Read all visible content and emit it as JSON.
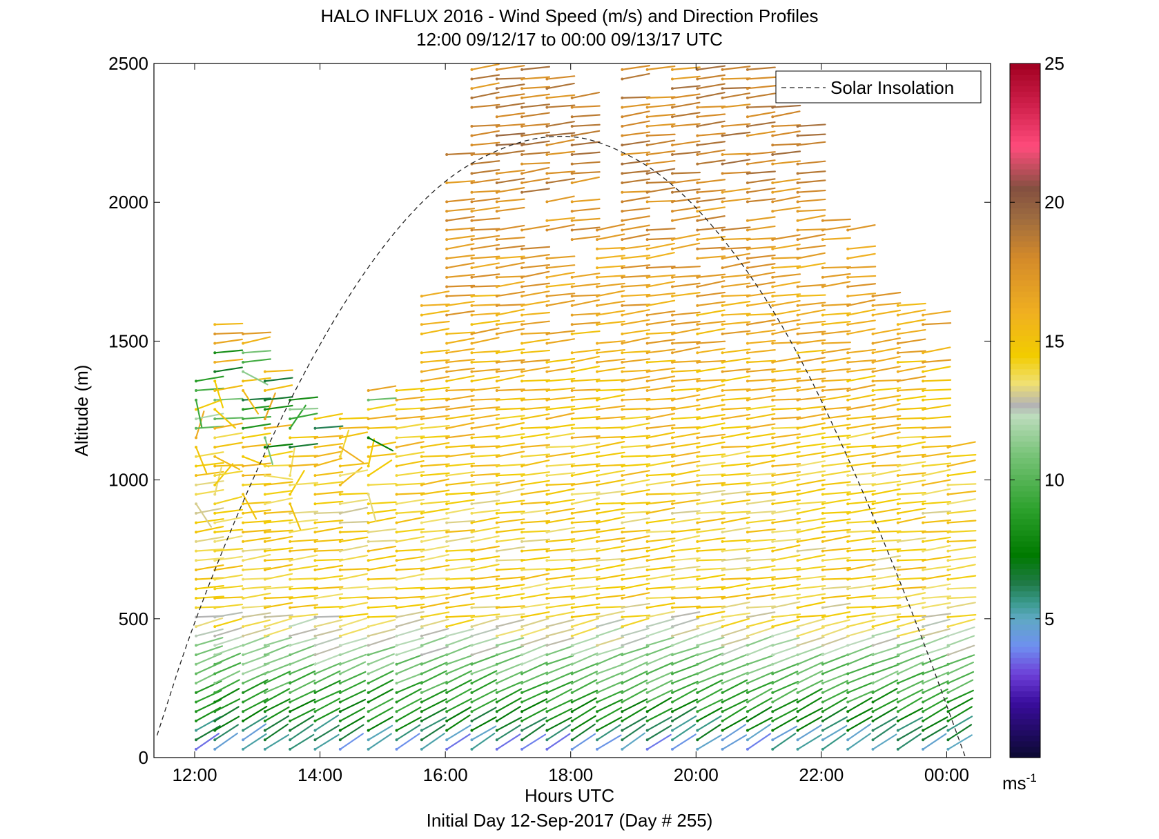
{
  "chart_data": {
    "type": "wind-barb-profile",
    "title": "HALO INFLUX 2016 - Wind Speed (m/s) and Direction Profiles",
    "subtitle": "12:00 09/12/17 to 00:00 09/13/17  UTC",
    "xlabel": "Hours UTC",
    "ylabel": "Altitude (m)",
    "footer": "Initial Day 12-Sep-2017 (Day # 255)",
    "xlim": [
      11.35,
      24.7
    ],
    "ylim": [
      0,
      2500
    ],
    "x_ticks": [
      12,
      14,
      16,
      18,
      20,
      22,
      24
    ],
    "x_tick_labels": [
      "12:00",
      "14:00",
      "16:00",
      "18:00",
      "20:00",
      "22:00",
      "00:00"
    ],
    "y_ticks": [
      0,
      500,
      1000,
      1500,
      2000,
      2500
    ],
    "y_tick_labels": [
      "0",
      "500",
      "1000",
      "1500",
      "2000",
      "2500"
    ],
    "legend": {
      "position": "top-right",
      "entries": [
        "Solar Insolation"
      ]
    },
    "solar_insolation": {
      "line_style": "dashed",
      "x": [
        11.4,
        12.0,
        13.0,
        14.0,
        15.0,
        16.0,
        17.0,
        17.8,
        18.5,
        19.5,
        20.5,
        21.5,
        22.5,
        23.5,
        24.3
      ],
      "y": [
        80,
        500,
        1050,
        1500,
        1850,
        2090,
        2210,
        2245,
        2220,
        2100,
        1860,
        1520,
        1050,
        500,
        0
      ]
    },
    "profiles": {
      "times": [
        12.0,
        12.3,
        12.75,
        13.1,
        13.5,
        13.9,
        14.3,
        14.75,
        15.2,
        15.6,
        16.0,
        16.4,
        16.8,
        17.2,
        17.6,
        18.0,
        18.4,
        18.8,
        19.2,
        19.6,
        20.0,
        20.4,
        20.8,
        21.2,
        21.6,
        22.0,
        22.4,
        22.8,
        23.2,
        23.6,
        24.0
      ],
      "tops_m": [
        1380,
        1580,
        1540,
        1420,
        1300,
        1250,
        1220,
        1350,
        1340,
        1680,
        2200,
        2500,
        2500,
        2500,
        2500,
        2400,
        1900,
        2500,
        2500,
        2500,
        2500,
        2500,
        2500,
        2350,
        2300,
        2050,
        1900,
        1720,
        1700,
        1620,
        1120
      ],
      "min_altitude_m": 30,
      "vertical_spacing_m": 34,
      "speed_profile": [
        {
          "altitude": 0,
          "speed": 4
        },
        {
          "altitude": 150,
          "speed": 8
        },
        {
          "altitude": 300,
          "speed": 10.5
        },
        {
          "altitude": 420,
          "speed": 12.5
        },
        {
          "altitude": 560,
          "speed": 14.5
        },
        {
          "altitude": 900,
          "speed": 14.2
        },
        {
          "altitude": 1300,
          "speed": 15.5
        },
        {
          "altitude": 1800,
          "speed": 17
        },
        {
          "altitude": 2200,
          "speed": 18.5
        },
        {
          "altitude": 2500,
          "speed": 18
        }
      ]
    },
    "colorbar": {
      "range": [
        0,
        25
      ],
      "ticks": [
        5,
        10,
        15,
        20,
        25
      ],
      "tick_labels": [
        "5",
        "10",
        "15",
        "20",
        "25"
      ],
      "unit_label": "ms",
      "unit_exponent": "-1",
      "stops": [
        {
          "value": 0,
          "color": "#0b0930"
        },
        {
          "value": 2,
          "color": "#3a0d9e"
        },
        {
          "value": 3,
          "color": "#6d3fd8"
        },
        {
          "value": 4,
          "color": "#6f8ff0"
        },
        {
          "value": 5,
          "color": "#5fa9c4"
        },
        {
          "value": 5.6,
          "color": "#3a9a8c"
        },
        {
          "value": 6.3,
          "color": "#1f7a46"
        },
        {
          "value": 7.3,
          "color": "#007a00"
        },
        {
          "value": 9,
          "color": "#2ea22e"
        },
        {
          "value": 11,
          "color": "#7cc57c"
        },
        {
          "value": 12.3,
          "color": "#bcdcbc"
        },
        {
          "value": 12.7,
          "color": "#b4b4b4"
        },
        {
          "value": 13.5,
          "color": "#f0e070"
        },
        {
          "value": 14.5,
          "color": "#f2cc00"
        },
        {
          "value": 16,
          "color": "#f0b020"
        },
        {
          "value": 18,
          "color": "#d48a2a"
        },
        {
          "value": 19.5,
          "color": "#9c6a40"
        },
        {
          "value": 20.5,
          "color": "#845040"
        },
        {
          "value": 22,
          "color": "#ff4c7c"
        },
        {
          "value": 23.5,
          "color": "#d0204c"
        },
        {
          "value": 25,
          "color": "#a00020"
        }
      ]
    }
  }
}
